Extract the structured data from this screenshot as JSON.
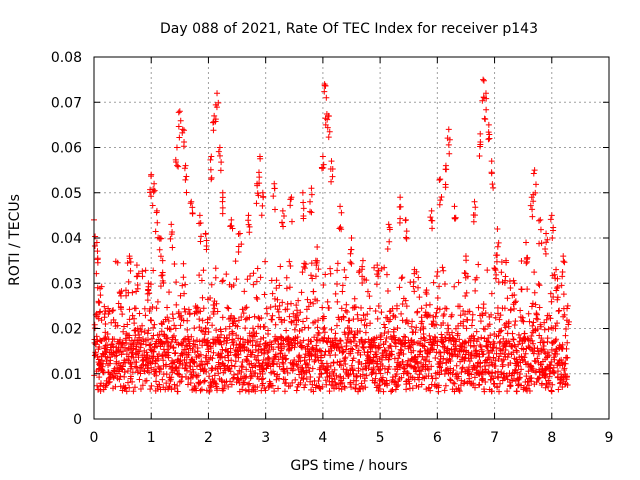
{
  "chart_data": {
    "type": "scatter",
    "title": "Day 088 of 2021, Rate Of TEC Index for receiver p143",
    "xlabel": "GPS time / hours",
    "ylabel": "ROTI / TECUs",
    "xlim": [
      0,
      9
    ],
    "ylim": [
      0,
      0.08
    ],
    "x_ticks": [
      "0",
      "1",
      "2",
      "3",
      "4",
      "5",
      "6",
      "7",
      "8",
      "9"
    ],
    "y_ticks": [
      "0",
      "0.01",
      "0.02",
      "0.03",
      "0.04",
      "0.05",
      "0.06",
      "0.07",
      "0.08"
    ],
    "grid": true,
    "marker": "+",
    "marker_color": "#ff0000",
    "series": [
      {
        "name": "p143",
        "x_range": [
          0,
          8.28
        ],
        "points": [
          [
            0.0,
            0.044
          ],
          [
            0.05,
            0.039
          ],
          [
            0.08,
            0.026
          ],
          [
            0.1,
            0.012
          ],
          [
            0.2,
            0.021
          ],
          [
            0.45,
            0.028
          ],
          [
            0.62,
            0.036
          ],
          [
            0.75,
            0.034
          ],
          [
            0.95,
            0.03
          ],
          [
            1.0,
            0.054
          ],
          [
            1.05,
            0.052
          ],
          [
            1.1,
            0.046
          ],
          [
            1.15,
            0.04
          ],
          [
            1.2,
            0.035
          ],
          [
            1.35,
            0.043
          ],
          [
            1.45,
            0.06
          ],
          [
            1.5,
            0.068
          ],
          [
            1.55,
            0.064
          ],
          [
            1.6,
            0.056
          ],
          [
            1.7,
            0.048
          ],
          [
            1.85,
            0.045
          ],
          [
            1.95,
            0.041
          ],
          [
            2.05,
            0.058
          ],
          [
            2.1,
            0.067
          ],
          [
            2.15,
            0.072
          ],
          [
            2.2,
            0.06
          ],
          [
            2.25,
            0.05
          ],
          [
            2.4,
            0.044
          ],
          [
            2.55,
            0.041
          ],
          [
            2.7,
            0.045
          ],
          [
            2.85,
            0.052
          ],
          [
            2.9,
            0.058
          ],
          [
            2.95,
            0.05
          ],
          [
            3.15,
            0.052
          ],
          [
            3.3,
            0.046
          ],
          [
            3.45,
            0.049
          ],
          [
            3.65,
            0.05
          ],
          [
            3.8,
            0.051
          ],
          [
            3.9,
            0.038
          ],
          [
            4.0,
            0.058
          ],
          [
            4.03,
            0.074
          ],
          [
            4.06,
            0.071
          ],
          [
            4.1,
            0.067
          ],
          [
            4.15,
            0.057
          ],
          [
            4.3,
            0.047
          ],
          [
            4.5,
            0.04
          ],
          [
            4.7,
            0.035
          ],
          [
            4.95,
            0.034
          ],
          [
            5.15,
            0.043
          ],
          [
            5.35,
            0.049
          ],
          [
            5.45,
            0.044
          ],
          [
            5.6,
            0.033
          ],
          [
            5.8,
            0.028
          ],
          [
            5.9,
            0.046
          ],
          [
            6.05,
            0.053
          ],
          [
            6.15,
            0.056
          ],
          [
            6.2,
            0.064
          ],
          [
            6.3,
            0.047
          ],
          [
            6.5,
            0.036
          ],
          [
            6.65,
            0.048
          ],
          [
            6.75,
            0.063
          ],
          [
            6.8,
            0.075
          ],
          [
            6.85,
            0.072
          ],
          [
            6.9,
            0.065
          ],
          [
            6.95,
            0.057
          ],
          [
            7.05,
            0.042
          ],
          [
            7.2,
            0.035
          ],
          [
            7.35,
            0.03
          ],
          [
            7.55,
            0.039
          ],
          [
            7.65,
            0.049
          ],
          [
            7.7,
            0.055
          ],
          [
            7.8,
            0.044
          ],
          [
            7.9,
            0.041
          ],
          [
            8.0,
            0.045
          ],
          [
            8.1,
            0.031
          ],
          [
            8.2,
            0.036
          ],
          [
            8.28,
            0.025
          ]
        ]
      }
    ]
  }
}
